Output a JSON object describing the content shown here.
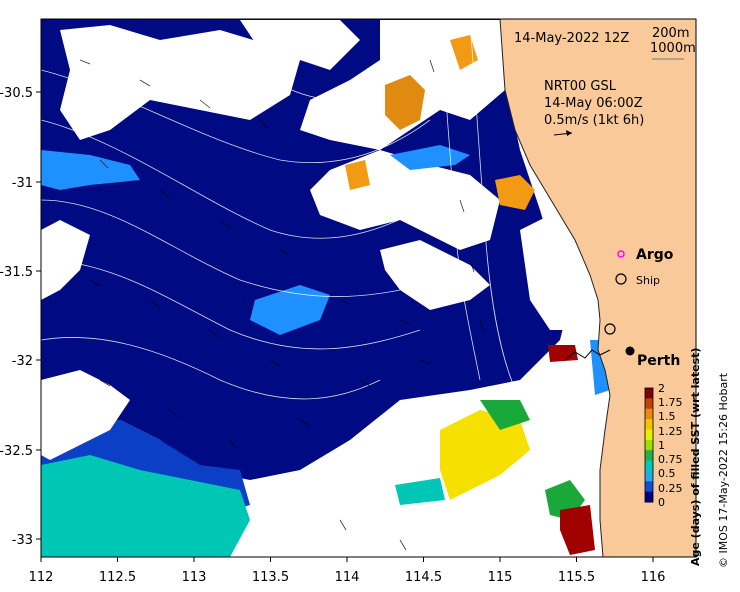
{
  "header": {
    "date_label": "14-May-2022 12Z",
    "depth_label_1": "200m",
    "depth_label_2": "1000m"
  },
  "current_info": {
    "line1": "NRT00 GSL",
    "line2": "14-May 06:00Z",
    "line3": "0.5m/s (1kt 6h)"
  },
  "legend": {
    "argo_label": "Argo",
    "ship_label": "Ship",
    "argo_color": "#ff00ff"
  },
  "places": {
    "perth": "Perth"
  },
  "axes": {
    "x_ticks": [
      "112",
      "112.5",
      "113",
      "113.5",
      "114",
      "114.5",
      "115",
      "115.5",
      "116"
    ],
    "y_ticks": [
      "-30.5",
      "-31",
      "-31.5",
      "-32",
      "-32.5",
      "-33"
    ]
  },
  "colorbar": {
    "title": "Age (days) of filled SST (wrt latest)",
    "ticks": [
      "2",
      "1.75",
      "1.5",
      "1.25",
      "1",
      "0.75",
      "0.5",
      "0.25",
      "0"
    ],
    "colors": [
      "#7f0000",
      "#c2410a",
      "#e88a12",
      "#f5c400",
      "#e8f000",
      "#9ce000",
      "#22b24c",
      "#00c8b4",
      "#28a8e8",
      "#1050d0",
      "#000080"
    ]
  },
  "credit": "© IMOS 17-May-2022 15:26 Hobart",
  "colors": {
    "land": "#f9c99a",
    "deep_blue": "#000a82",
    "mid_blue": "#0a3fc6",
    "light_blue": "#1e90ff",
    "teal": "#00c6b5",
    "orange": "#f29a14",
    "yellow": "#f5e000",
    "green": "#1ba83b",
    "dark_red": "#a00000"
  }
}
